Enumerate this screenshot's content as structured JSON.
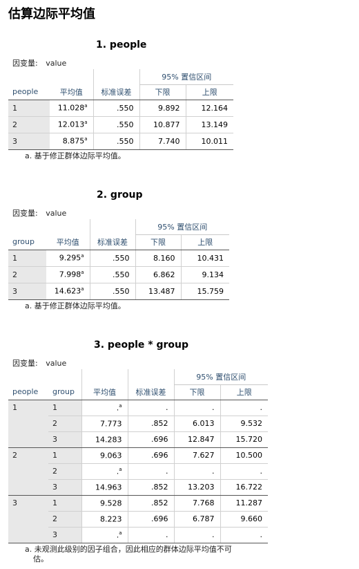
{
  "page": {
    "title": "估算边际平均值",
    "dep_label": "因变量:",
    "dep_value": "value",
    "ci_label": "95% 置信区间",
    "col_mean": "平均值",
    "col_se": "标准误差",
    "col_lower": "下限",
    "col_upper": "上限"
  },
  "t1": {
    "title": "1. people",
    "factor": "people",
    "rows": [
      {
        "level": "1",
        "mean": "11.028",
        "sup": "a",
        "se": ".550",
        "lower": "9.892",
        "upper": "12.164"
      },
      {
        "level": "2",
        "mean": "12.013",
        "sup": "a",
        "se": ".550",
        "lower": "10.877",
        "upper": "13.149"
      },
      {
        "level": "3",
        "mean": "8.875",
        "sup": "a",
        "se": ".550",
        "lower": "7.740",
        "upper": "10.011"
      }
    ],
    "footnote": "a. 基于修正群体边际平均值。"
  },
  "t2": {
    "title": "2. group",
    "factor": "group",
    "rows": [
      {
        "level": "1",
        "mean": "9.295",
        "sup": "a",
        "se": ".550",
        "lower": "8.160",
        "upper": "10.431"
      },
      {
        "level": "2",
        "mean": "7.998",
        "sup": "a",
        "se": ".550",
        "lower": "6.862",
        "upper": "9.134"
      },
      {
        "level": "3",
        "mean": "14.623",
        "sup": "a",
        "se": ".550",
        "lower": "13.487",
        "upper": "15.759"
      }
    ],
    "footnote": "a. 基于修正群体边际平均值。"
  },
  "t3": {
    "title": "3. people * group",
    "factor1": "people",
    "factor2": "group",
    "blocks": [
      {
        "people": "1",
        "rows": [
          {
            "group": "1",
            "mean": ".",
            "sup": "a",
            "se": ".",
            "lower": ".",
            "upper": "."
          },
          {
            "group": "2",
            "mean": "7.773",
            "sup": "",
            "se": ".852",
            "lower": "6.013",
            "upper": "9.532"
          },
          {
            "group": "3",
            "mean": "14.283",
            "sup": "",
            "se": ".696",
            "lower": "12.847",
            "upper": "15.720"
          }
        ]
      },
      {
        "people": "2",
        "rows": [
          {
            "group": "1",
            "mean": "9.063",
            "sup": "",
            "se": ".696",
            "lower": "7.627",
            "upper": "10.500"
          },
          {
            "group": "2",
            "mean": ".",
            "sup": "a",
            "se": ".",
            "lower": ".",
            "upper": "."
          },
          {
            "group": "3",
            "mean": "14.963",
            "sup": "",
            "se": ".852",
            "lower": "13.203",
            "upper": "16.722"
          }
        ]
      },
      {
        "people": "3",
        "rows": [
          {
            "group": "1",
            "mean": "9.528",
            "sup": "",
            "se": ".852",
            "lower": "7.768",
            "upper": "11.287"
          },
          {
            "group": "2",
            "mean": "8.223",
            "sup": "",
            "se": ".696",
            "lower": "6.787",
            "upper": "9.660"
          },
          {
            "group": "3",
            "mean": ".",
            "sup": "a",
            "se": ".",
            "lower": ".",
            "upper": "."
          }
        ]
      }
    ],
    "footnote_line1": "a. 未观测此级别的因子组合，因此相应的群体边际平均值不可",
    "footnote_line2": "估。"
  }
}
